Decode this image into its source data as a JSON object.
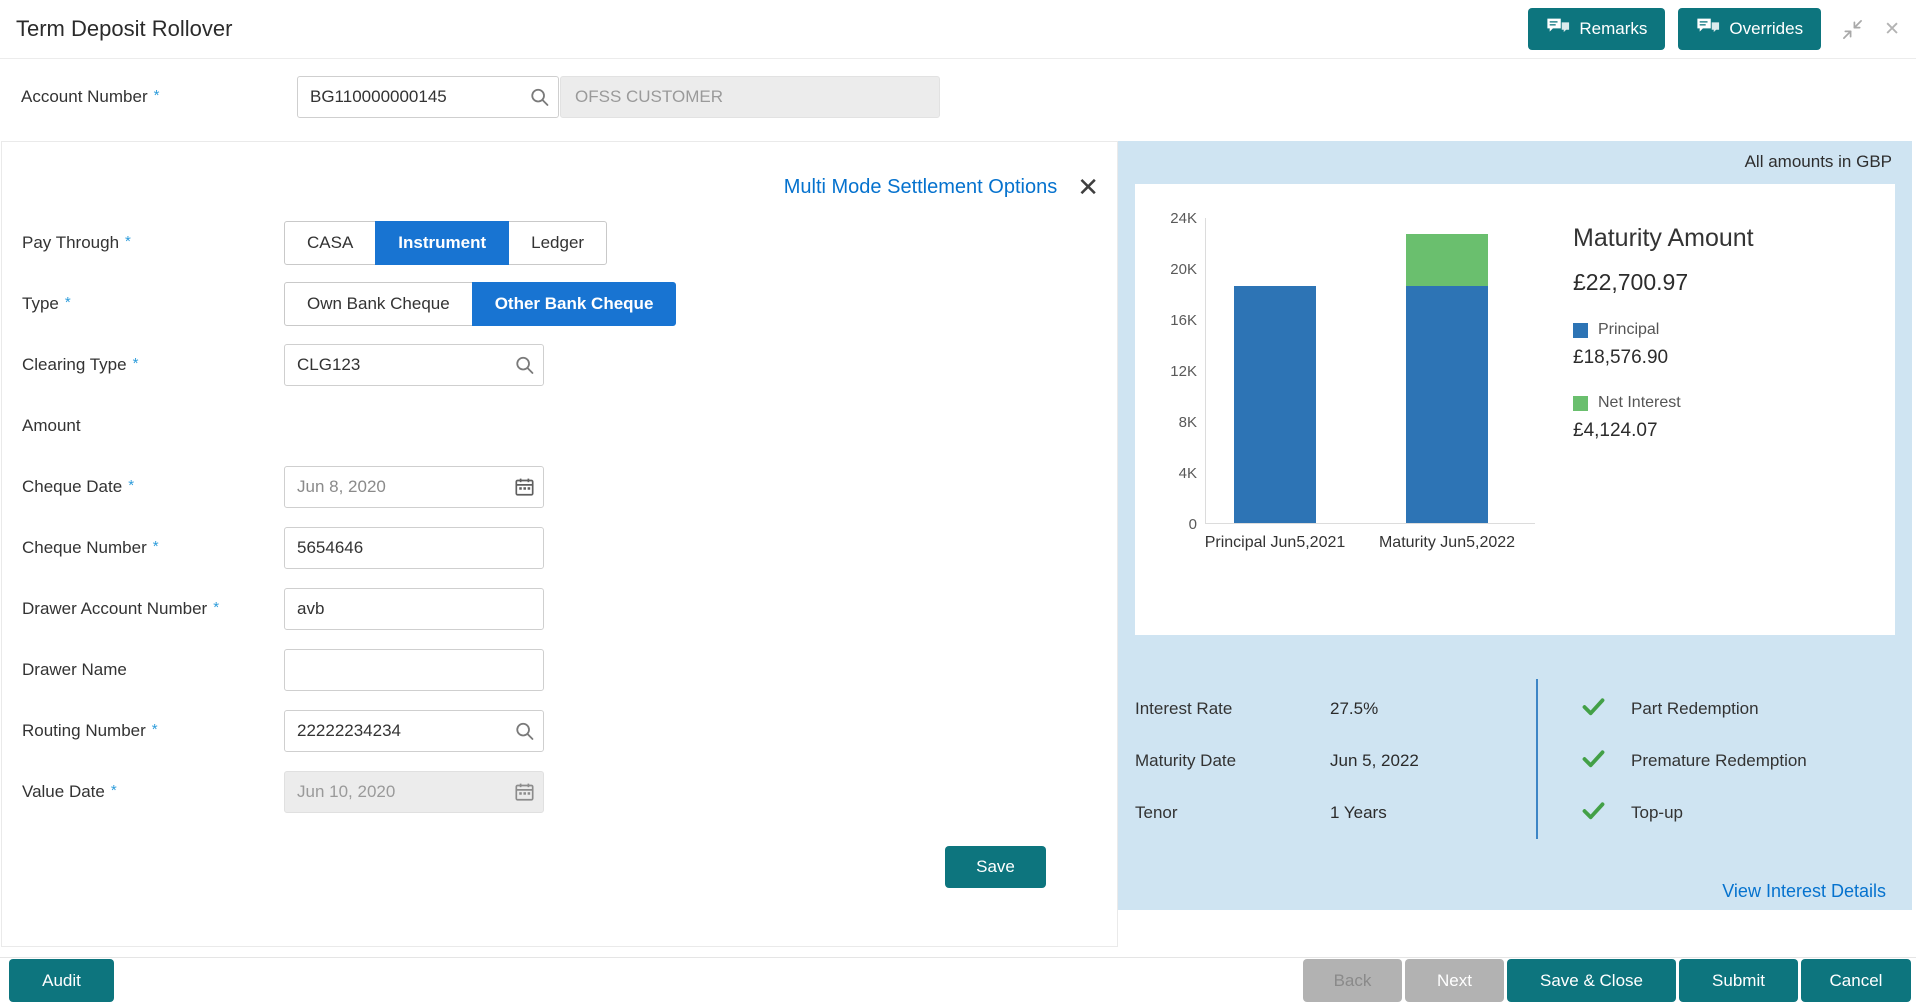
{
  "ui": {
    "required_marker": "*",
    "close_glyph": "✕"
  },
  "colors": {
    "accent_teal": "#0d757e",
    "toggle_selected_blue": "#1874d2",
    "link_blue": "#0572ce",
    "panel_background_blue": "#cfe4f2",
    "check_green": "#43a047"
  },
  "header": {
    "title": "Term Deposit Rollover",
    "remarks_label": "Remarks",
    "overrides_label": "Overrides"
  },
  "account": {
    "label": "Account Number",
    "value": "BG110000000145",
    "customer_name": "OFSS CUSTOMER"
  },
  "settlement": {
    "title": "Multi Mode Settlement Options",
    "fields": {
      "pay_through": {
        "label": "Pay Through",
        "options": [
          "CASA",
          "Instrument",
          "Ledger"
        ],
        "selected": "Instrument"
      },
      "type": {
        "label": "Type",
        "options": [
          "Own Bank Cheque",
          "Other Bank Cheque"
        ],
        "selected": "Other Bank Cheque"
      },
      "clearing_type": {
        "label": "Clearing Type",
        "value": "CLG123"
      },
      "amount": {
        "label": "Amount",
        "value": ""
      },
      "cheque_date": {
        "label": "Cheque Date",
        "value": "Jun 8, 2020"
      },
      "cheque_number": {
        "label": "Cheque Number",
        "value": "5654646"
      },
      "drawer_account_number": {
        "label": "Drawer Account Number",
        "value": "avb"
      },
      "drawer_name": {
        "label": "Drawer Name",
        "value": ""
      },
      "routing_number": {
        "label": "Routing Number",
        "value": "22222234234"
      },
      "value_date": {
        "label": "Value Date",
        "value": "Jun 10, 2020",
        "disabled": true
      }
    },
    "save_label": "Save"
  },
  "summary": {
    "currency_note": "All amounts in GBP",
    "maturity_amount_label": "Maturity Amount",
    "maturity_amount": "£22,700.97",
    "principal_label": "Principal",
    "principal": "£18,576.90",
    "net_interest_label": "Net Interest",
    "net_interest": "£4,124.07",
    "details": [
      {
        "label": "Interest Rate",
        "value": "27.5%"
      },
      {
        "label": "Maturity Date",
        "value": "Jun 5, 2022"
      },
      {
        "label": "Tenor",
        "value": "1 Years"
      }
    ],
    "features": [
      "Part Redemption",
      "Premature Redemption",
      "Top-up"
    ],
    "view_interest_label": "View Interest Details"
  },
  "chart_data": {
    "type": "bar",
    "stacked": true,
    "categories": [
      "Principal Jun5,2021",
      "Maturity Jun5,2022"
    ],
    "series": [
      {
        "name": "Principal",
        "color": "#2d74b5",
        "values": [
          18576.9,
          18576.9
        ]
      },
      {
        "name": "Net Interest",
        "color": "#6abf6e",
        "values": [
          0,
          4124.07
        ]
      }
    ],
    "ylim": [
      0,
      24000
    ],
    "yticks": [
      "0",
      "4K",
      "8K",
      "12K",
      "16K",
      "20K",
      "24K"
    ],
    "grid": false,
    "legend_position": "right",
    "title": "",
    "xlabel": "",
    "ylabel": ""
  },
  "footer": {
    "audit_label": "Audit",
    "back_label": "Back",
    "next_label": "Next",
    "save_close_label": "Save & Close",
    "submit_label": "Submit",
    "cancel_label": "Cancel"
  }
}
